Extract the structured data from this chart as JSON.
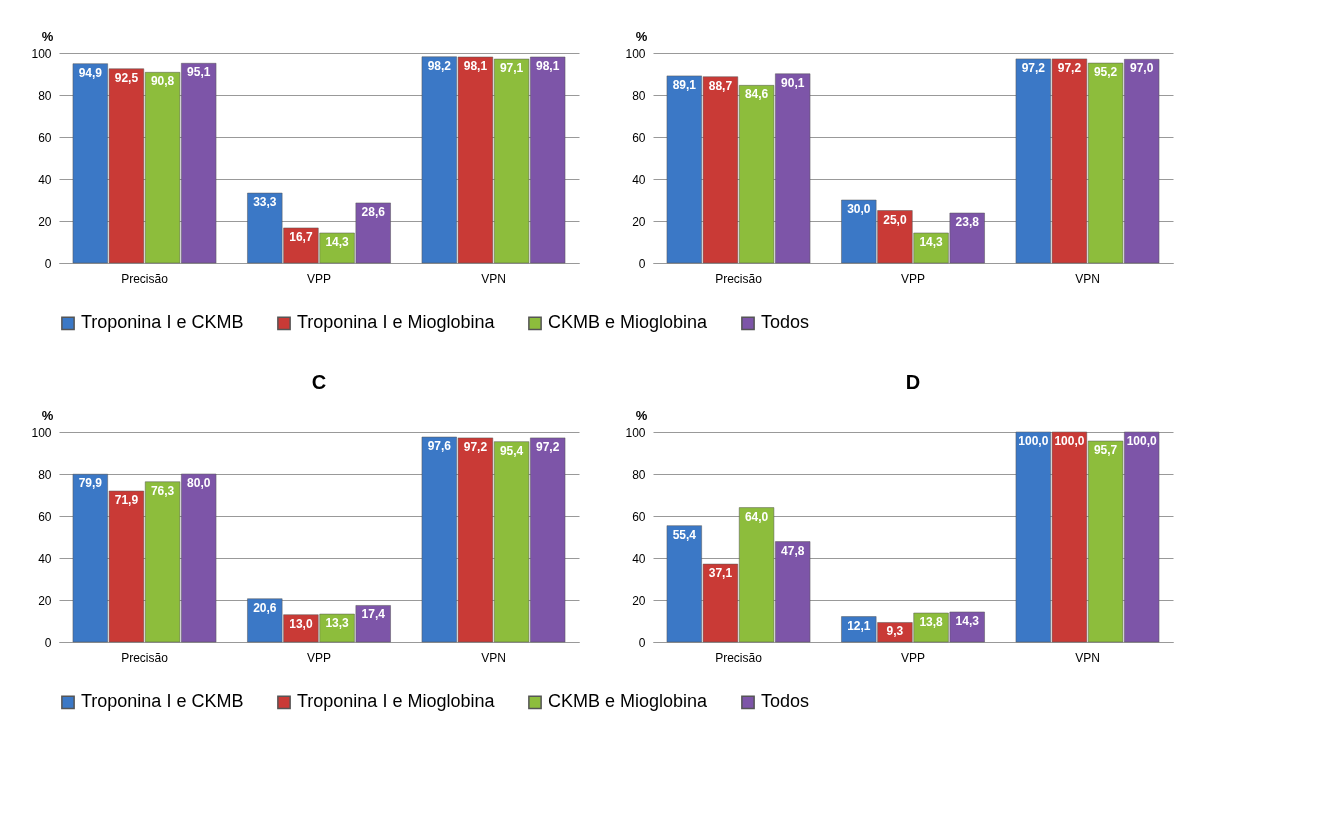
{
  "chart_data": [
    {
      "type": "bar",
      "ylabel": "%",
      "categories": [
        "Precisão",
        "VPP",
        "VPN"
      ],
      "ylim": [
        0,
        100
      ],
      "yticks": [
        0,
        20,
        40,
        60,
        80,
        100
      ],
      "grid": "y",
      "legend": "bottom",
      "series": [
        {
          "name": "Troponina I e CKMB",
          "color": "#3b78c6",
          "values": [
            94.9,
            33.3,
            98.2
          ],
          "value_labels": [
            "94,9",
            "33,3",
            "98,2"
          ]
        },
        {
          "name": "Troponina I e Mioglobina",
          "color": "#c93a36",
          "values": [
            92.5,
            16.7,
            98.1
          ],
          "value_labels": [
            "92,5",
            "16,7",
            "98,1"
          ]
        },
        {
          "name": "CKMB e Mioglobina",
          "color": "#8dbd3c",
          "values": [
            90.8,
            14.3,
            97.1
          ],
          "value_labels": [
            "90,8",
            "14,3",
            "97,1"
          ]
        },
        {
          "name": "Todos",
          "color": "#7d55a8",
          "values": [
            95.1,
            28.6,
            98.1
          ],
          "value_labels": [
            "95,1",
            "28,6",
            "98,1"
          ]
        }
      ]
    },
    {
      "type": "bar",
      "ylabel": "%",
      "categories": [
        "Precisão",
        "VPP",
        "VPN"
      ],
      "ylim": [
        0,
        100
      ],
      "yticks": [
        0,
        20,
        40,
        60,
        80,
        100
      ],
      "grid": "y",
      "legend": "bottom",
      "series": [
        {
          "name": "Troponina I e CKMB",
          "color": "#3b78c6",
          "values": [
            89.1,
            30.0,
            97.2
          ],
          "value_labels": [
            "89,1",
            "30,0",
            "97,2"
          ]
        },
        {
          "name": "Troponina I e Mioglobina",
          "color": "#c93a36",
          "values": [
            88.7,
            25.0,
            97.2
          ],
          "value_labels": [
            "88,7",
            "25,0",
            "97,2"
          ]
        },
        {
          "name": "CKMB e Mioglobina",
          "color": "#8dbd3c",
          "values": [
            84.6,
            14.3,
            95.2
          ],
          "value_labels": [
            "84,6",
            "14,3",
            "95,2"
          ]
        },
        {
          "name": "Todos",
          "color": "#7d55a8",
          "values": [
            90.1,
            23.8,
            97.0
          ],
          "value_labels": [
            "90,1",
            "23,8",
            "97,0"
          ]
        }
      ]
    },
    {
      "type": "bar",
      "title": "C",
      "ylabel": "%",
      "categories": [
        "Precisão",
        "VPP",
        "VPN"
      ],
      "ylim": [
        0,
        100
      ],
      "yticks": [
        0,
        20,
        40,
        60,
        80,
        100
      ],
      "grid": "y",
      "legend": "bottom",
      "series": [
        {
          "name": "Troponina I e CKMB",
          "color": "#3b78c6",
          "values": [
            79.9,
            20.6,
            97.6
          ],
          "value_labels": [
            "79,9",
            "20,6",
            "97,6"
          ]
        },
        {
          "name": "Troponina I e Mioglobina",
          "color": "#c93a36",
          "values": [
            71.9,
            13.0,
            97.2
          ],
          "value_labels": [
            "71,9",
            "13,0",
            "97,2"
          ]
        },
        {
          "name": "CKMB e Mioglobina",
          "color": "#8dbd3c",
          "values": [
            76.3,
            13.3,
            95.4
          ],
          "value_labels": [
            "76,3",
            "13,3",
            "95,4"
          ]
        },
        {
          "name": "Todos",
          "color": "#7d55a8",
          "values": [
            80.0,
            17.4,
            97.2
          ],
          "value_labels": [
            "80,0",
            "17,4",
            "97,2"
          ]
        }
      ]
    },
    {
      "type": "bar",
      "title": "D",
      "ylabel": "%",
      "categories": [
        "Precisão",
        "VPP",
        "VPN"
      ],
      "ylim": [
        0,
        100
      ],
      "yticks": [
        0,
        20,
        40,
        60,
        80,
        100
      ],
      "grid": "y",
      "legend": "bottom",
      "series": [
        {
          "name": "Troponina I e CKMB",
          "color": "#3b78c6",
          "values": [
            55.4,
            12.1,
            100.0
          ],
          "value_labels": [
            "55,4",
            "12,1",
            "100,0"
          ]
        },
        {
          "name": "Troponina I e Mioglobina",
          "color": "#c93a36",
          "values": [
            37.1,
            9.3,
            100.0
          ],
          "value_labels": [
            "37,1",
            "9,3",
            "100,0"
          ]
        },
        {
          "name": "CKMB e Mioglobina",
          "color": "#8dbd3c",
          "values": [
            64.0,
            13.8,
            95.7
          ],
          "value_labels": [
            "64,0",
            "13,8",
            "95,7"
          ]
        },
        {
          "name": "Todos",
          "color": "#7d55a8",
          "values": [
            47.8,
            14.3,
            100.0
          ],
          "value_labels": [
            "47,8",
            "14,3",
            "100,0"
          ]
        }
      ]
    }
  ]
}
